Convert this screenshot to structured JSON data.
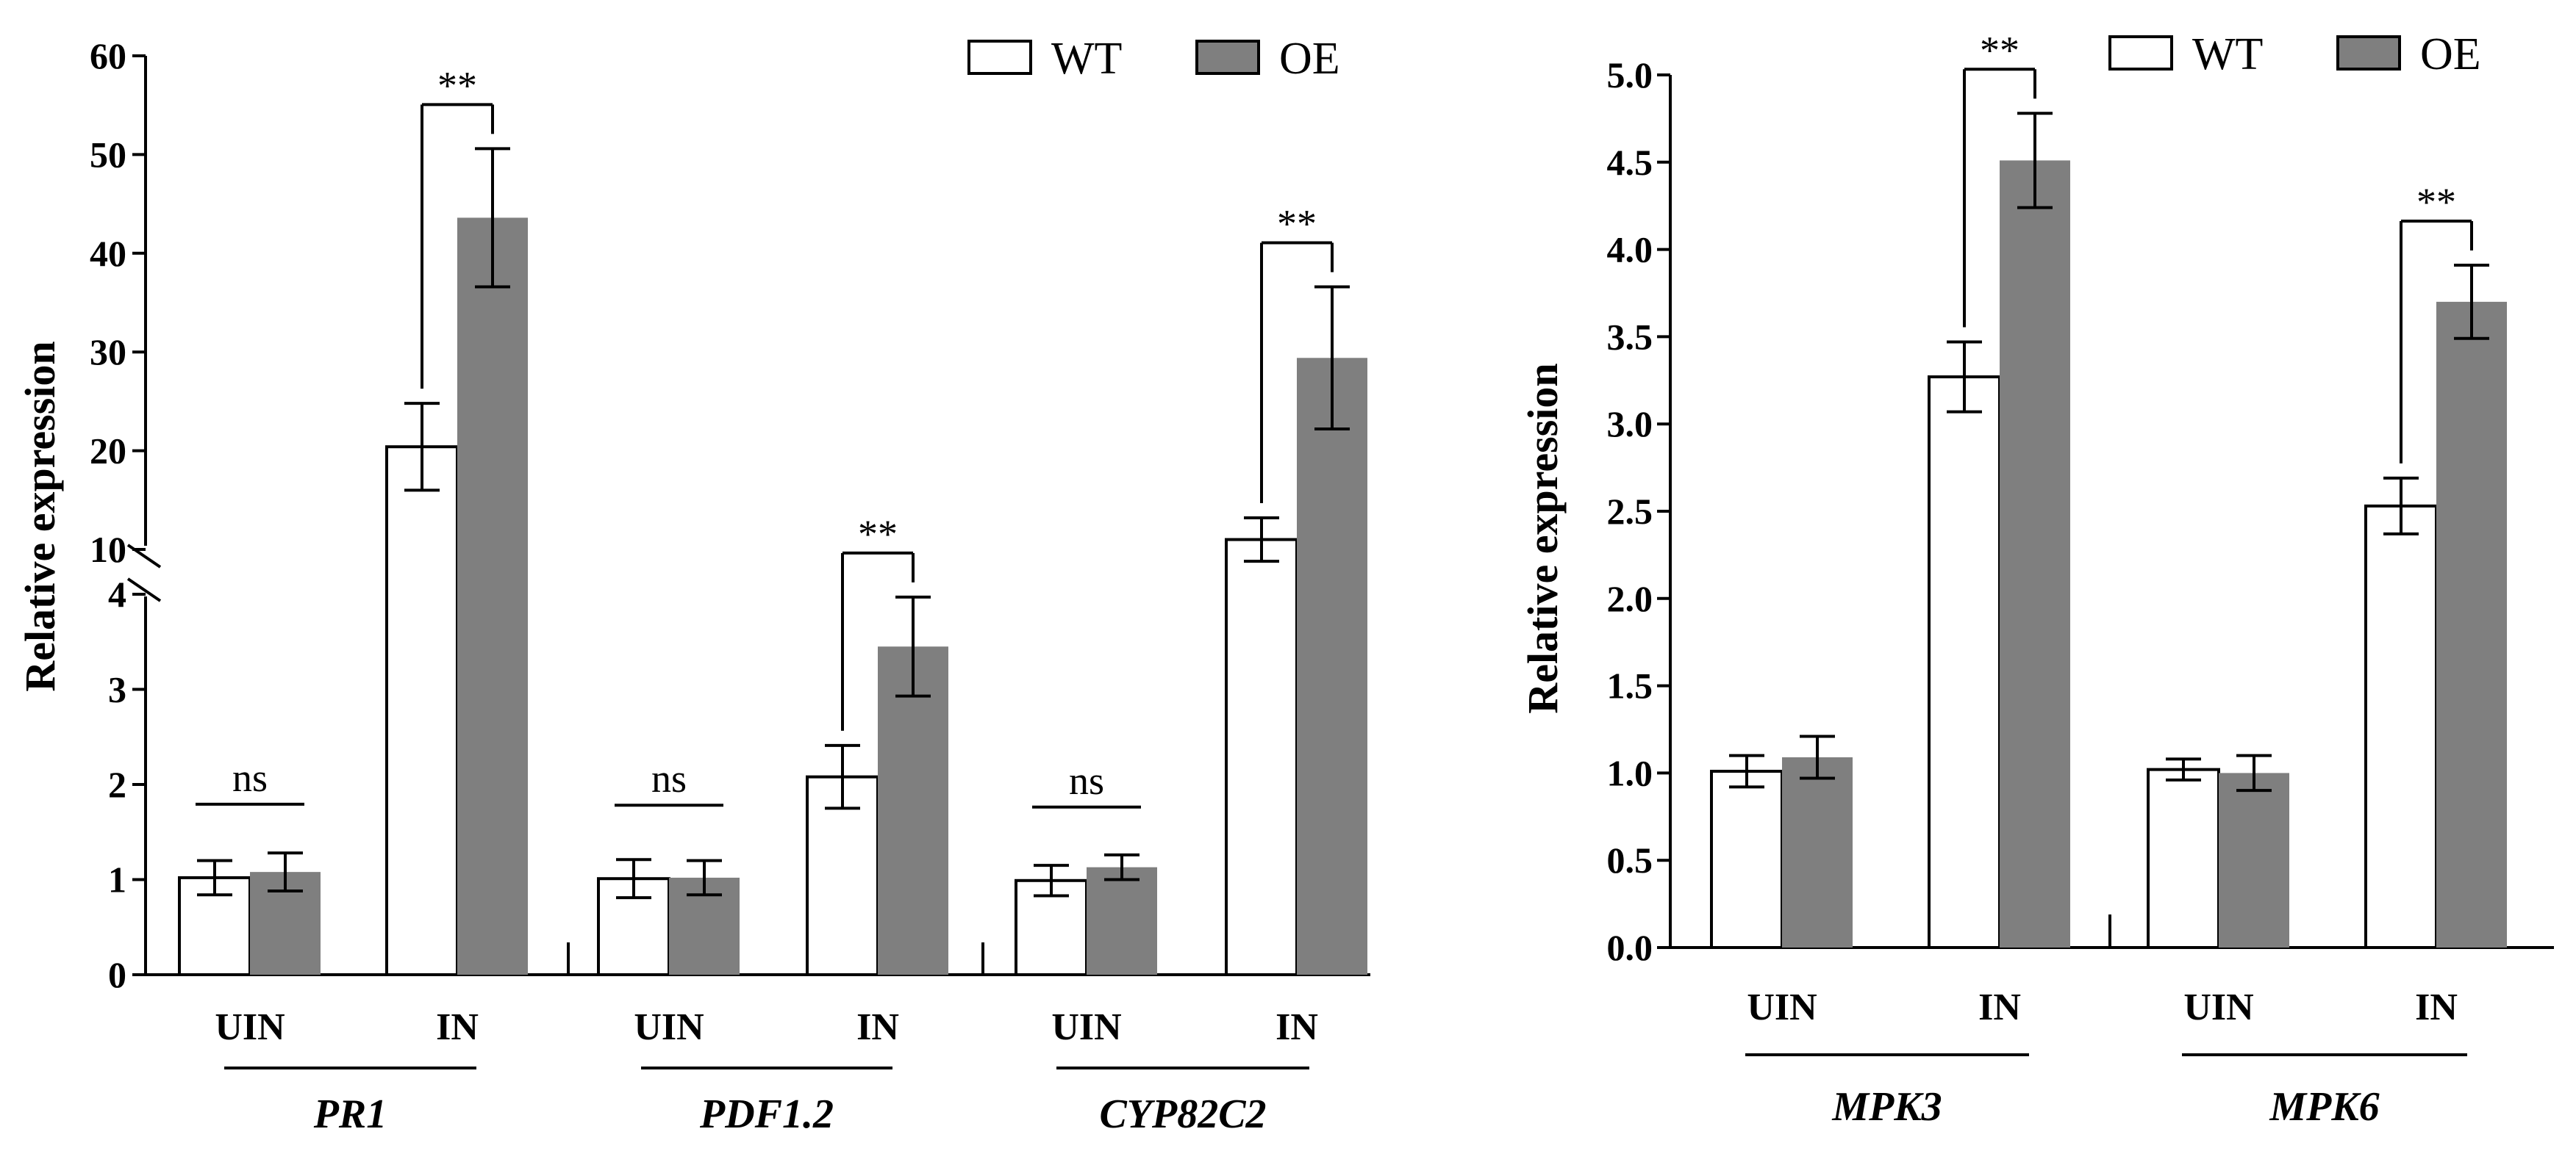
{
  "colors": {
    "wt_fill": "#ffffff",
    "oe_fill": "#7f7f7f",
    "stroke": "#000000"
  },
  "legend": [
    {
      "label": "WT",
      "color": "#ffffff"
    },
    {
      "label": "OE",
      "color": "#7f7f7f"
    }
  ],
  "chart_data": [
    {
      "type": "bar",
      "ylabel": "Relative expression",
      "broken_axis": true,
      "lower_range": [
        0,
        4
      ],
      "upper_range": [
        10,
        60
      ],
      "lower_ticks": [
        "0",
        "1",
        "2",
        "3",
        "4"
      ],
      "upper_ticks": [
        "10",
        "20",
        "30",
        "40",
        "50",
        "60"
      ],
      "categories": [
        "UIN",
        "IN",
        "UIN",
        "IN",
        "UIN",
        "IN"
      ],
      "groups": [
        {
          "name": "PR1",
          "categories": [
            "UIN",
            "IN"
          ]
        },
        {
          "name": "PDF1.2",
          "categories": [
            "UIN",
            "IN"
          ]
        },
        {
          "name": "CYP82C2",
          "categories": [
            "UIN",
            "IN"
          ]
        }
      ],
      "series": [
        {
          "name": "WT",
          "values": [
            1.02,
            20.4,
            1.01,
            2.08,
            0.99,
            11.0
          ],
          "errors": [
            0.18,
            4.4,
            0.2,
            0.33,
            0.16,
            2.2
          ]
        },
        {
          "name": "OE",
          "values": [
            1.08,
            43.6,
            1.02,
            3.45,
            1.13,
            29.4
          ],
          "errors": [
            0.2,
            7.0,
            0.18,
            0.52,
            0.13,
            7.2
          ]
        }
      ],
      "significance": [
        "ns",
        "**",
        "ns",
        "**",
        "ns",
        "**"
      ]
    },
    {
      "type": "bar",
      "ylabel": "Relative expression",
      "ylim": [
        0,
        5
      ],
      "yticks": [
        "0.0",
        "0.5",
        "1.0",
        "1.5",
        "2.0",
        "2.5",
        "3.0",
        "3.5",
        "4.0",
        "4.5",
        "5.0"
      ],
      "categories": [
        "UIN",
        "IN",
        "UIN",
        "IN"
      ],
      "groups": [
        {
          "name": "MPK3",
          "categories": [
            "UIN",
            "IN"
          ]
        },
        {
          "name": "MPK6",
          "categories": [
            "UIN",
            "IN"
          ]
        }
      ],
      "series": [
        {
          "name": "WT",
          "values": [
            1.01,
            3.27,
            1.02,
            2.53
          ],
          "errors": [
            0.09,
            0.2,
            0.06,
            0.16
          ]
        },
        {
          "name": "OE",
          "values": [
            1.09,
            4.51,
            1.0,
            3.7
          ],
          "errors": [
            0.12,
            0.27,
            0.1,
            0.21
          ]
        }
      ],
      "significance": [
        "",
        "**",
        "",
        "**"
      ]
    }
  ]
}
